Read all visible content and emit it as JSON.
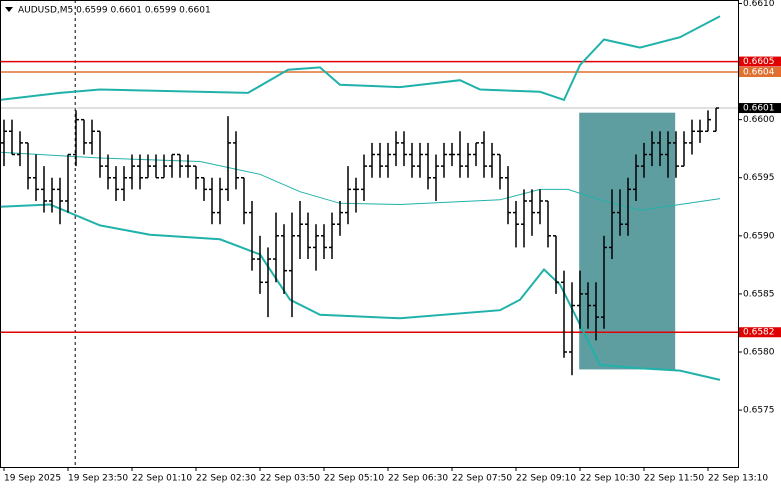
{
  "chart_data": {
    "type": "ohlc",
    "title": "AUDUSD,M5  0.6599 0.6601 0.6599 0.6601",
    "xlim": [
      0,
      92.25
    ],
    "ylim": [
      0.65701,
      0.66103
    ],
    "xticks": [
      {
        "value": 0.5,
        "label": "19 Sep 2025"
      },
      {
        "value": 8.5,
        "label": "19 Sep 23:50"
      },
      {
        "value": 16.5,
        "label": "22 Sep 01:10"
      },
      {
        "value": 24.5,
        "label": "22 Sep 02:30"
      },
      {
        "value": 32.5,
        "label": "22 Sep 03:50"
      },
      {
        "value": 40.5,
        "label": "22 Sep 05:10"
      },
      {
        "value": 48.5,
        "label": "22 Sep 06:30"
      },
      {
        "value": 56.5,
        "label": "22 Sep 07:50"
      },
      {
        "value": 64.5,
        "label": "22 Sep 09:10"
      },
      {
        "value": 72.5,
        "label": "22 Sep 10:30"
      },
      {
        "value": 80.5,
        "label": "22 Sep 11:50"
      },
      {
        "value": 88.5,
        "label": "22 Sep 13:10"
      }
    ],
    "yticks": [
      {
        "value": 0.661,
        "label": "0.6610"
      },
      {
        "value": 0.66,
        "label": "0.6600"
      },
      0.6595,
      {
        "value": 0.659,
        "label": "0.6590"
      },
      0.6585,
      {
        "value": 0.658,
        "label": "0.6580"
      },
      0.6575
    ],
    "color": "#000000",
    "ohlc": [
      [
        0.6598,
        0.66,
        0.6596,
        0.6599
      ],
      [
        0.6599,
        0.66,
        0.6597,
        0.6597
      ],
      [
        0.6597,
        0.6599,
        0.6596,
        0.6598
      ],
      [
        0.6598,
        0.6598,
        0.6594,
        0.6595
      ],
      [
        0.6595,
        0.6597,
        0.6593,
        0.6594
      ],
      [
        0.6594,
        0.6596,
        0.6592,
        0.6593
      ],
      [
        0.6593,
        0.6595,
        0.6592,
        0.6594
      ],
      [
        0.6594,
        0.6595,
        0.6591,
        0.6593
      ],
      [
        0.6593,
        0.6597,
        0.6592,
        0.6597
      ],
      [
        0.6597,
        0.66008,
        0.6596,
        0.66
      ],
      [
        0.66,
        0.66,
        0.6597,
        0.6598
      ],
      [
        0.6598,
        0.66,
        0.6597,
        0.6599
      ],
      [
        0.6599,
        0.6599,
        0.6595,
        0.6596
      ],
      [
        0.6596,
        0.6597,
        0.6594,
        0.6595
      ],
      [
        0.6595,
        0.6596,
        0.6593,
        0.6594
      ],
      [
        0.6594,
        0.6596,
        0.6593,
        0.6595
      ],
      [
        0.6595,
        0.6597,
        0.6594,
        0.6596
      ],
      [
        0.6596,
        0.6597,
        0.6594,
        0.6595
      ],
      [
        0.6595,
        0.6597,
        0.6595,
        0.6596
      ],
      [
        0.6596,
        0.6597,
        0.6595,
        0.6595
      ],
      [
        0.6595,
        0.6597,
        0.6595,
        0.6596
      ],
      [
        0.6596,
        0.6597,
        0.6595,
        0.6597
      ],
      [
        0.6597,
        0.6597,
        0.6595,
        0.6596
      ],
      [
        0.6596,
        0.6597,
        0.6595,
        0.6596
      ],
      [
        0.6596,
        0.6596,
        0.6594,
        0.6595
      ],
      [
        0.6595,
        0.6595,
        0.6593,
        0.6594
      ],
      [
        0.6594,
        0.6595,
        0.6591,
        0.6592
      ],
      [
        0.6592,
        0.6595,
        0.6591,
        0.6594
      ],
      [
        0.6594,
        0.66003,
        0.6593,
        0.6598
      ],
      [
        0.6598,
        0.6599,
        0.6594,
        0.6595
      ],
      [
        0.6595,
        0.6595,
        0.6591,
        0.6592
      ],
      [
        0.6592,
        0.6593,
        0.6587,
        0.6588
      ],
      [
        0.6588,
        0.659,
        0.6585,
        0.6586
      ],
      [
        0.6586,
        0.6589,
        0.6583,
        0.6588
      ],
      [
        0.6588,
        0.6592,
        0.6586,
        0.659
      ],
      [
        0.659,
        0.6591,
        0.6585,
        0.6587
      ],
      [
        0.6587,
        0.6592,
        0.6583,
        0.659
      ],
      [
        0.659,
        0.6593,
        0.6588,
        0.6591
      ],
      [
        0.6591,
        0.6592,
        0.6588,
        0.6589
      ],
      [
        0.6589,
        0.6591,
        0.6587,
        0.659
      ],
      [
        0.659,
        0.6591,
        0.6588,
        0.6589
      ],
      [
        0.6589,
        0.6592,
        0.6588,
        0.6591
      ],
      [
        0.6591,
        0.6593,
        0.659,
        0.6592
      ],
      [
        0.6592,
        0.6596,
        0.6591,
        0.6594
      ],
      [
        0.6594,
        0.6595,
        0.6592,
        0.6594
      ],
      [
        0.6594,
        0.6597,
        0.6593,
        0.6596
      ],
      [
        0.6596,
        0.6598,
        0.6595,
        0.6597
      ],
      [
        0.6597,
        0.6598,
        0.6595,
        0.6596
      ],
      [
        0.6596,
        0.6598,
        0.6595,
        0.6597
      ],
      [
        0.6597,
        0.6599,
        0.6596,
        0.6598
      ],
      [
        0.6598,
        0.6599,
        0.6596,
        0.6597
      ],
      [
        0.6597,
        0.6598,
        0.6595,
        0.6596
      ],
      [
        0.6596,
        0.6598,
        0.6595,
        0.6597
      ],
      [
        0.6597,
        0.6598,
        0.6594,
        0.6595
      ],
      [
        0.6595,
        0.6597,
        0.6593,
        0.6596
      ],
      [
        0.6596,
        0.6598,
        0.6595,
        0.6597
      ],
      [
        0.6597,
        0.6598,
        0.6596,
        0.6597
      ],
      [
        0.6597,
        0.6599,
        0.6595,
        0.6596
      ],
      [
        0.6596,
        0.6598,
        0.6595,
        0.6597
      ],
      [
        0.6597,
        0.6598,
        0.6596,
        0.6598
      ],
      [
        0.6598,
        0.6599,
        0.6595,
        0.6596
      ],
      [
        0.6596,
        0.6598,
        0.6595,
        0.6597
      ],
      [
        0.6597,
        0.6597,
        0.6594,
        0.6595
      ],
      [
        0.6595,
        0.6596,
        0.6591,
        0.6592
      ],
      [
        0.6592,
        0.6593,
        0.6589,
        0.6591
      ],
      [
        0.6591,
        0.6594,
        0.6589,
        0.6593
      ],
      [
        0.6593,
        0.6594,
        0.659,
        0.6592
      ],
      [
        0.6592,
        0.6594,
        0.6591,
        0.6593
      ],
      [
        0.6593,
        0.6593,
        0.6589,
        0.659
      ],
      [
        0.659,
        0.659,
        0.6585,
        0.6586
      ],
      [
        0.6586,
        0.6587,
        0.65795,
        0.658
      ],
      [
        0.658,
        0.6586,
        0.6578,
        0.6584
      ],
      [
        0.6584,
        0.6587,
        0.6582,
        0.6585
      ],
      [
        0.6585,
        0.6586,
        0.6582,
        0.6584
      ],
      [
        0.6584,
        0.6586,
        0.6581,
        0.6583
      ],
      [
        0.6583,
        0.659,
        0.6582,
        0.6589
      ],
      [
        0.6589,
        0.6594,
        0.6588,
        0.6592
      ],
      [
        0.6592,
        0.6594,
        0.659,
        0.6591
      ],
      [
        0.6591,
        0.6595,
        0.659,
        0.6594
      ],
      [
        0.6594,
        0.6597,
        0.6593,
        0.6596
      ],
      [
        0.6596,
        0.6598,
        0.6595,
        0.6597
      ],
      [
        0.6597,
        0.6599,
        0.6596,
        0.6598
      ],
      [
        0.6598,
        0.6599,
        0.6596,
        0.6597
      ],
      [
        0.6597,
        0.6599,
        0.6595,
        0.6598
      ],
      [
        0.6598,
        0.6599,
        0.6595,
        0.6596
      ],
      [
        0.6596,
        0.6599,
        0.6596,
        0.6598
      ],
      [
        0.6598,
        0.66,
        0.6597,
        0.6599
      ],
      [
        0.6599,
        0.66,
        0.6598,
        0.6599
      ],
      [
        0.6599,
        0.66008,
        0.6599,
        0.66
      ],
      [
        0.6599,
        0.6601,
        0.6599,
        0.6601
      ]
    ],
    "bands": [
      {
        "color": "#20b2aa",
        "width": 2,
        "x": [
          0,
          7.5,
          12.5,
          31,
          36,
          40,
          42.5,
          50,
          57.5,
          60,
          67.5,
          70.5,
          72.5,
          75.5,
          80,
          85,
          90
        ],
        "values": [
          0.66017,
          0.66023,
          0.66026,
          0.66023,
          0.66043,
          0.66045,
          0.6603,
          0.66028,
          0.66034,
          0.66026,
          0.66024,
          0.66017,
          0.66047,
          0.66069,
          0.66062,
          0.66071,
          0.66089
        ]
      },
      {
        "color": "#20b2aa",
        "width": 1,
        "x": [
          0,
          12.5,
          25,
          32.5,
          37.5,
          42.5,
          50,
          62.5,
          67.5,
          71,
          75,
          80,
          85,
          90
        ],
        "values": [
          0.65972,
          0.65967,
          0.65964,
          0.65953,
          0.65938,
          0.65928,
          0.65927,
          0.65931,
          0.6594,
          0.6594,
          0.65931,
          0.65922,
          0.65927,
          0.65932
        ]
      },
      {
        "color": "#20b2aa",
        "width": 2,
        "x": [
          0,
          6.25,
          12.5,
          18.75,
          27.5,
          32.5,
          36.25,
          40,
          50,
          62.5,
          65,
          68,
          70,
          75,
          80,
          85,
          90
        ],
        "values": [
          0.65925,
          0.65927,
          0.65909,
          0.65901,
          0.65897,
          0.65884,
          0.65845,
          0.65832,
          0.65829,
          0.65836,
          0.65845,
          0.65871,
          0.65858,
          0.65789,
          0.65786,
          0.65784,
          0.65776
        ]
      }
    ],
    "levels": [
      {
        "value": 0.6605,
        "label": "0.6605",
        "color": "#e00000"
      },
      {
        "value": 0.66041,
        "label": "0.6604",
        "color": "#e07030"
      },
      {
        "value": 0.6601,
        "label": "0.6601",
        "color": "#c0c0c0"
      },
      {
        "value": 0.65817,
        "label": "0.6582",
        "color": "#e00000"
      }
    ],
    "rectangle": {
      "x": [
        72.4,
        84.4
      ],
      "y": [
        0.65785,
        0.66006
      ],
      "color": "#5f9ea0"
    },
    "vline": 9.4
  }
}
